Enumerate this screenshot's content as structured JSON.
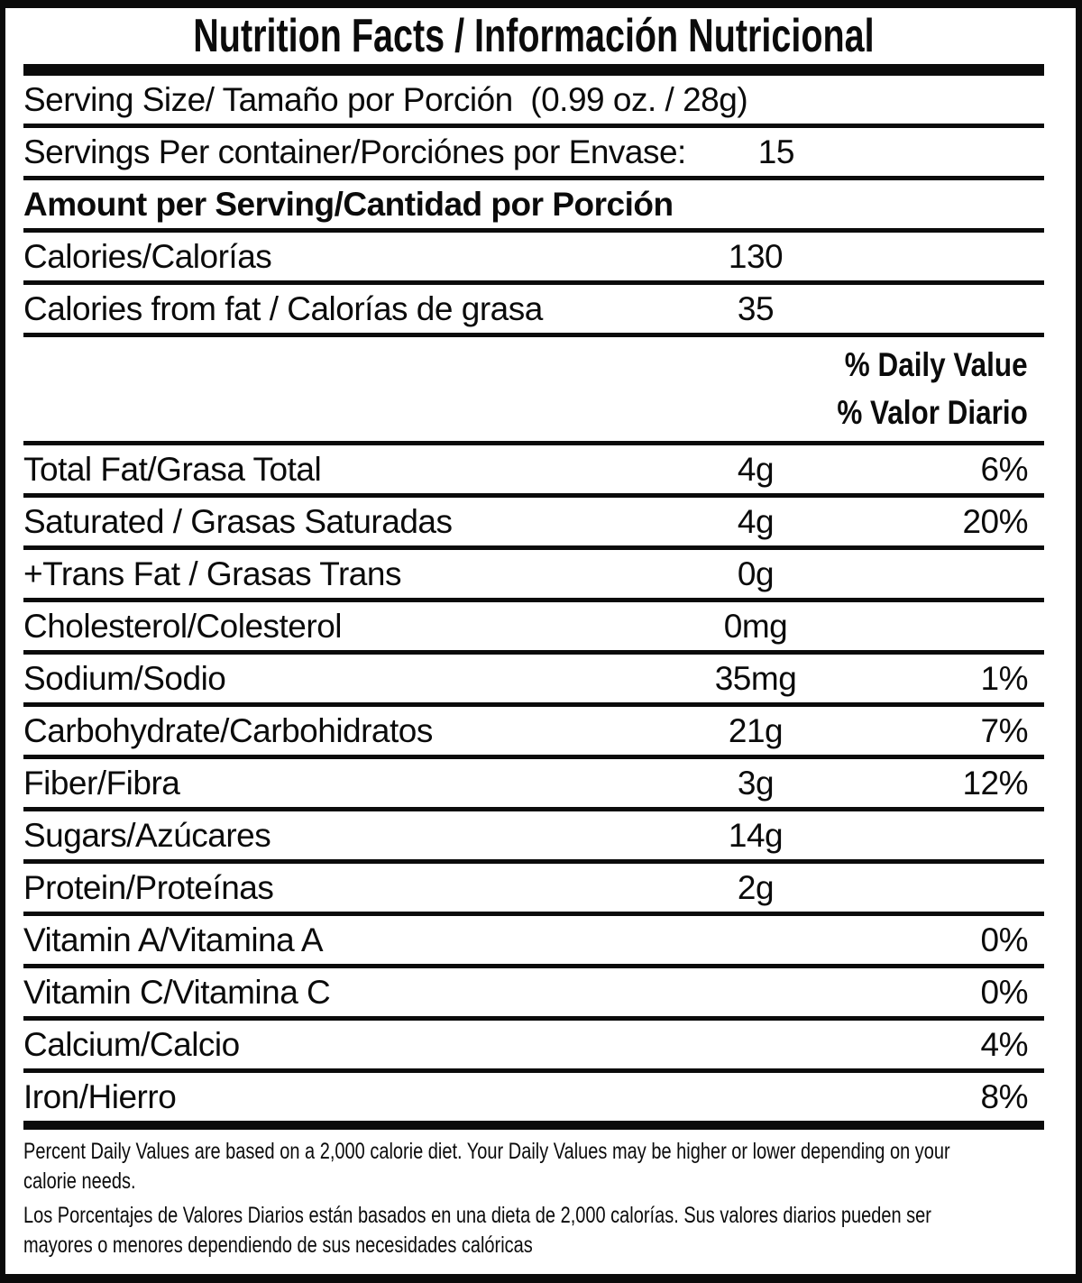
{
  "title": "Nutrition Facts / Información Nutricional",
  "dv_header": {
    "en": "% Daily Value",
    "es": "% Valor Diario"
  },
  "rows_top": [
    {
      "id": "serving-size",
      "label": "Serving Size/ Tamaño por Porción  (0.99 oz. / 28g)",
      "value": "",
      "pct": "",
      "bold": false
    },
    {
      "id": "servings-per-container",
      "label": "Servings Per container/Porciónes por Envase:",
      "value": "15",
      "pct": "",
      "bold": false
    },
    {
      "id": "amount-per-serving",
      "label": "Amount per Serving/Cantidad por Porción",
      "value": "",
      "pct": "",
      "bold": true
    },
    {
      "id": "calories",
      "label": "Calories/Calorías",
      "value": "130",
      "pct": "",
      "bold": false
    },
    {
      "id": "calories-from-fat",
      "label": "Calories from fat / Calorías de grasa",
      "value": "35",
      "pct": "",
      "bold": false
    }
  ],
  "nutrients": [
    {
      "id": "total-fat",
      "label": "Total Fat/Grasa Total",
      "value": "4g",
      "pct": "6%",
      "bold": false
    },
    {
      "id": "saturated-fat",
      "label": "Saturated / Grasas Saturadas",
      "value": "4g",
      "pct": "20%",
      "bold": false
    },
    {
      "id": "trans-fat",
      "label": "+Trans Fat / Grasas Trans",
      "value": "0g",
      "pct": "",
      "bold": false
    },
    {
      "id": "cholesterol",
      "label": "Cholesterol/Colesterol",
      "value": "0mg",
      "pct": "",
      "bold": false
    },
    {
      "id": "sodium",
      "label": "Sodium/Sodio",
      "value": "35mg",
      "pct": "1%",
      "bold": false
    },
    {
      "id": "carbohydrate",
      "label": "Carbohydrate/Carbohidratos",
      "value": "21g",
      "pct": "7%",
      "bold": false
    },
    {
      "id": "fiber",
      "label": "Fiber/Fibra",
      "value": "3g",
      "pct": "12%",
      "bold": false
    },
    {
      "id": "sugars",
      "label": "Sugars/Azúcares",
      "value": "14g",
      "pct": "",
      "bold": false
    },
    {
      "id": "protein",
      "label": "Protein/Proteínas",
      "value": "2g",
      "pct": "",
      "bold": false
    },
    {
      "id": "vitamin-a",
      "label": "Vitamin A/Vitamina A",
      "value": "",
      "pct": "0%",
      "bold": false
    },
    {
      "id": "vitamin-c",
      "label": "Vitamin C/Vitamina C",
      "value": "",
      "pct": "0%",
      "bold": false
    },
    {
      "id": "calcium",
      "label": "Calcium/Calcio",
      "value": "",
      "pct": "4%",
      "bold": false
    },
    {
      "id": "iron",
      "label": "Iron/Hierro",
      "value": "",
      "pct": "8%",
      "bold": false
    }
  ],
  "footnotes": {
    "en_lines": [
      "Percent Daily Values are based on a 2,000 calorie diet. Your Daily Values may be higher or lower depending on your",
      "calorie needs."
    ],
    "es_lines": [
      "Los Porcentajes de Valores Diarios están basados en una dieta de 2,000 calorías. Sus valores diarios pueden ser",
      "mayores o menores dependiendo de sus necesidades calóricas"
    ]
  },
  "colors": {
    "ink": "#0b0b0b",
    "background": "#ffffff"
  }
}
